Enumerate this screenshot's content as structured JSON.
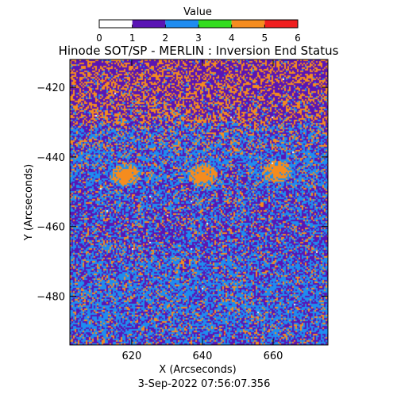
{
  "chart_data": {
    "type": "heatmap",
    "title": "Hinode SOT/SP - MERLIN : Inversion End Status",
    "xlabel": "X (Arcseconds)",
    "ylabel": "Y (Arcseconds)",
    "timestamp": "3-Sep-2022 07:56:07.356",
    "xlim": [
      602.5,
      675.5
    ],
    "ylim": [
      -494,
      -412
    ],
    "x_ticks": [
      620,
      640,
      660
    ],
    "y_ticks": [
      -420,
      -440,
      -460,
      -480
    ],
    "colorbar": {
      "label": "Value",
      "range": [
        0,
        6
      ],
      "ticks": [
        0,
        1,
        2,
        3,
        4,
        5,
        6
      ],
      "levels": [
        {
          "from": 0,
          "to": 1,
          "color": "#ffffff"
        },
        {
          "from": 1,
          "to": 2,
          "color": "#5a14b4"
        },
        {
          "from": 2,
          "to": 3,
          "color": "#1e8cf0"
        },
        {
          "from": 3,
          "to": 4,
          "color": "#32dc1e"
        },
        {
          "from": 4,
          "to": 5,
          "color": "#f58c1e"
        },
        {
          "from": 5,
          "to": 6,
          "color": "#f01e1e"
        }
      ]
    },
    "value_distribution": {
      "1": 0.45,
      "2": 0.35,
      "4": 0.2
    },
    "patches": [
      {
        "x": 618,
        "y": -445,
        "value": 4
      },
      {
        "x": 640,
        "y": -445,
        "value": 4
      },
      {
        "x": 661,
        "y": -444,
        "value": 4
      }
    ]
  }
}
